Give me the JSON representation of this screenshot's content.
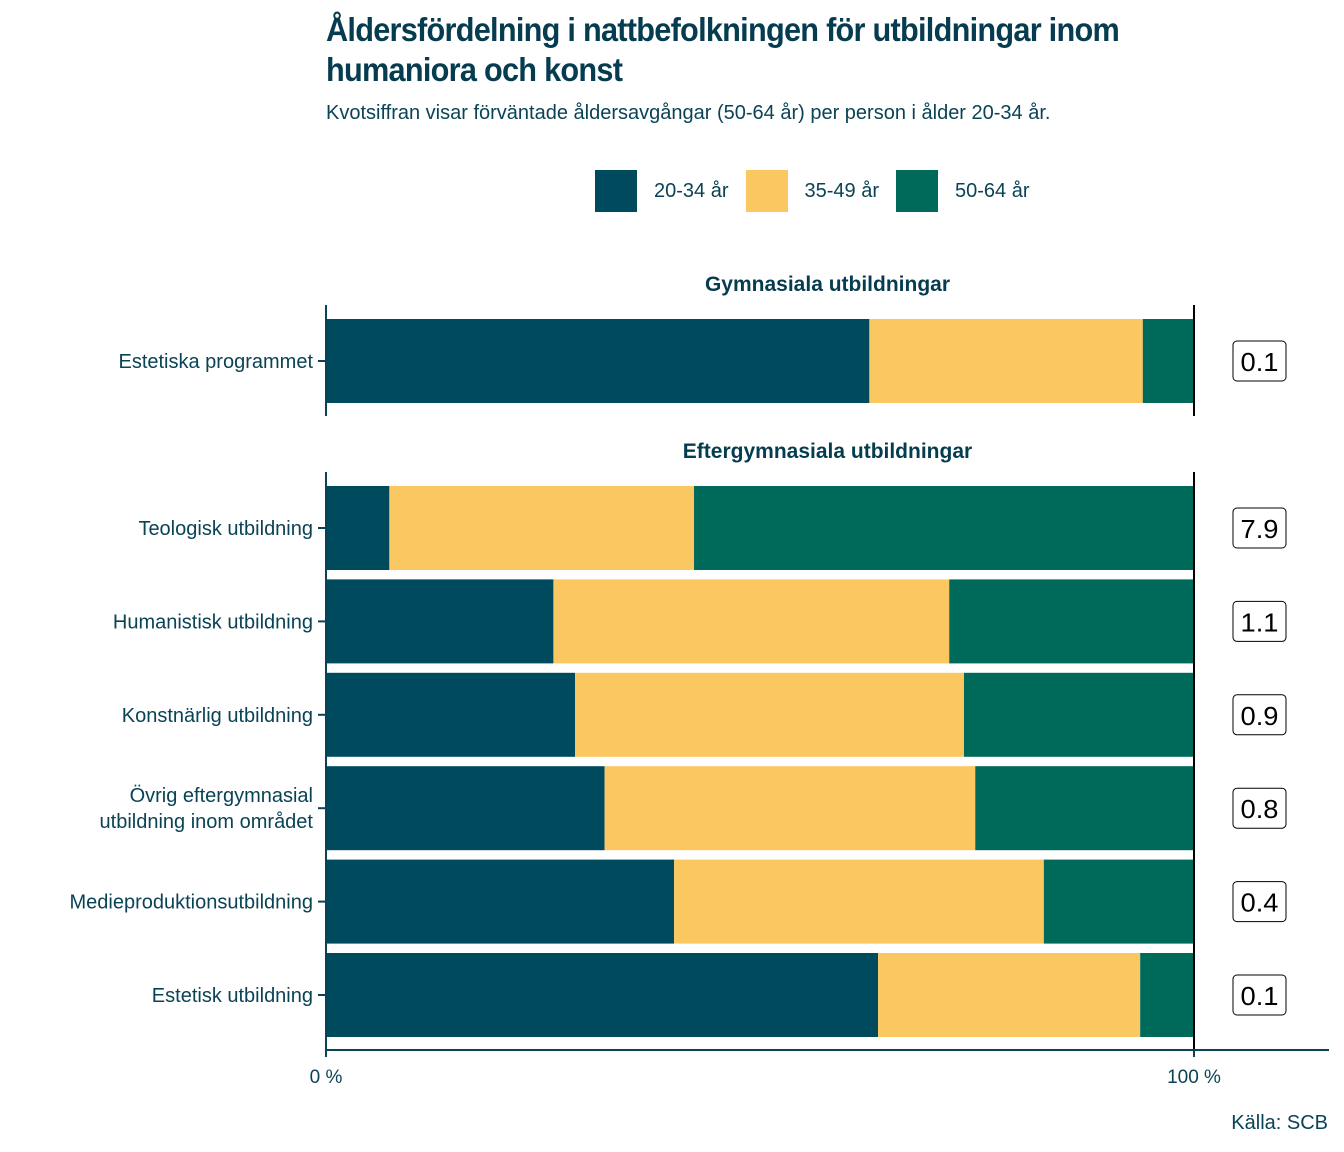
{
  "title": "Åldersfördelning i nattbefolkningen för utbildningar inom humaniora och konst",
  "subtitle": "Kvotsiffran visar förväntade åldersavgångar (50-64 år) per person i ålder 20-34 år.",
  "caption": "Källa: SCB",
  "colors": {
    "age_20_34": "#004a5e",
    "age_35_49": "#fbc761",
    "age_50_64": "#006a5a",
    "text": "#0a4356"
  },
  "legend": [
    {
      "label": "20-34 år",
      "color": "#004a5e"
    },
    {
      "label": "35-49 år",
      "color": "#fbc761"
    },
    {
      "label": "50-64 år",
      "color": "#006a5a"
    }
  ],
  "chart_data": {
    "type": "bar",
    "orientation": "horizontal",
    "stacked": "percent",
    "title": "Åldersfördelning i nattbefolkningen för utbildningar inom humaniora och konst",
    "subtitle": "Kvotsiffran visar förväntade åldersavgångar (50-64 år) per person i ålder 20-34 år.",
    "xlabel": "",
    "ylabel": "",
    "xlim": [
      0,
      100
    ],
    "x_ticks": [
      "0 %",
      "100 %"
    ],
    "legend_position": "top",
    "series_names": [
      "20-34 år",
      "35-49 år",
      "50-64 år"
    ],
    "panels": [
      {
        "title": "Gymnasiala utbildningar",
        "categories": [
          "Estetiska programmet"
        ],
        "series": [
          {
            "name": "20-34 år",
            "values": [
              62.6
            ]
          },
          {
            "name": "35-49 år",
            "values": [
              31.5
            ]
          },
          {
            "name": "50-64 år",
            "values": [
              5.9
            ]
          }
        ],
        "ratio_labels": [
          "0.1"
        ]
      },
      {
        "title": "Eftergymnasiala utbildningar",
        "categories": [
          "Teologisk utbildning",
          "Humanistisk utbildning",
          "Konstnärlig utbildning",
          "Övrig eftergymnasial\nutbildning inom området",
          "Medieproduktionsutbildning",
          "Estetisk utbildning"
        ],
        "series": [
          {
            "name": "20-34 år",
            "values": [
              7.3,
              26.2,
              28.7,
              32.1,
              40.1,
              63.6
            ]
          },
          {
            "name": "35-49 år",
            "values": [
              35.1,
              45.6,
              44.8,
              42.7,
              42.6,
              30.2
            ]
          },
          {
            "name": "50-64 år",
            "values": [
              57.6,
              28.2,
              26.5,
              25.2,
              17.3,
              6.2
            ]
          }
        ],
        "ratio_labels": [
          "7.9",
          "1.1",
          "0.9",
          "0.8",
          "0.4",
          "0.1"
        ]
      }
    ]
  }
}
